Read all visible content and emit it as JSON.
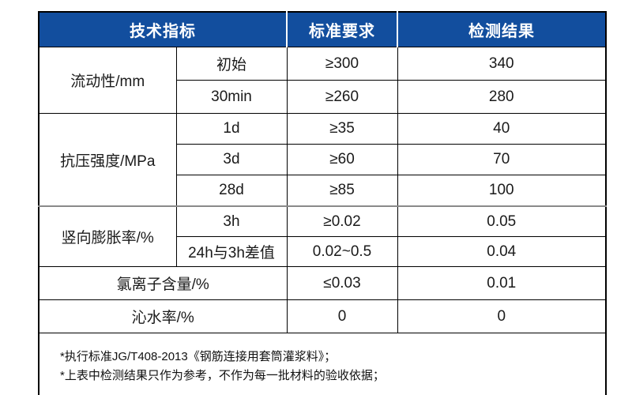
{
  "page": {
    "background_color": "#ffffff"
  },
  "table": {
    "header": {
      "bg_color": "#124e9e",
      "text_color": "#ffffff",
      "columns": [
        "技术指标",
        "标准要求",
        "检测结果"
      ]
    },
    "sections": [
      {
        "label": "流动性/mm",
        "rows": [
          {
            "sub": "初始",
            "standard": "≥300",
            "result": "340"
          },
          {
            "sub": "30min",
            "standard": "≥260",
            "result": "280"
          }
        ]
      },
      {
        "label": "抗压强度/MPa",
        "rows": [
          {
            "sub": "1d",
            "standard": "≥35",
            "result": "40"
          },
          {
            "sub": "3d",
            "standard": "≥60",
            "result": "70"
          },
          {
            "sub": "28d",
            "standard": "≥85",
            "result": "100"
          }
        ]
      },
      {
        "label": "竖向膨胀率/%",
        "rows": [
          {
            "sub": "3h",
            "standard": "≥0.02",
            "result": "0.05"
          },
          {
            "sub": "24h与3h差值",
            "standard": "0.02~0.5",
            "result": "0.04"
          }
        ]
      }
    ],
    "simple_rows": [
      {
        "label": "氯离子含量/%",
        "standard": "≤0.03",
        "result": "0.01"
      },
      {
        "label": "沁水率/%",
        "standard": "0",
        "result": "0"
      }
    ],
    "notes": [
      "*执行标准JG/T408-2013《钢筋连接用套筒灌浆料》；",
      "*上表中检测结果只作为参考，不作为每一批材料的验收依据；"
    ]
  }
}
